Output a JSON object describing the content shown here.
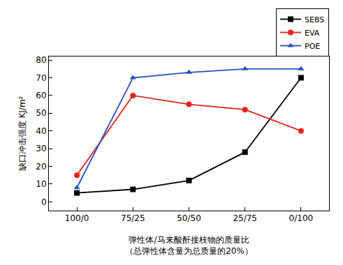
{
  "chart_data": {
    "type": "line",
    "categories": [
      "100/0",
      "75/25",
      "50/50",
      "25/75",
      "0/100"
    ],
    "series": [
      {
        "name": "SEBS",
        "color": "#000000",
        "marker": "square",
        "line_style": "solid",
        "values": [
          5,
          7,
          12,
          28,
          70
        ]
      },
      {
        "name": "EVA",
        "color": "#e8221c",
        "marker": "circle",
        "line_style": "solid",
        "values": [
          15,
          60,
          55,
          52,
          40
        ]
      },
      {
        "name": "POE",
        "color": "#2b4fb8",
        "marker": "triangle-up",
        "line_style": "solid",
        "values": [
          8,
          70,
          73,
          75,
          75
        ]
      }
    ],
    "x_label": [
      "弹性体/马来酸酐接枝物的质量比",
      "（总弹性体含量为总质量的20%）"
    ],
    "y_label": "缺口冲击强度 KJ/m²",
    "ylim": [
      -5,
      82
    ],
    "yticks": [
      0,
      10,
      20,
      30,
      40,
      50,
      60,
      70,
      80
    ],
    "grid": false,
    "legend": "upper right"
  }
}
